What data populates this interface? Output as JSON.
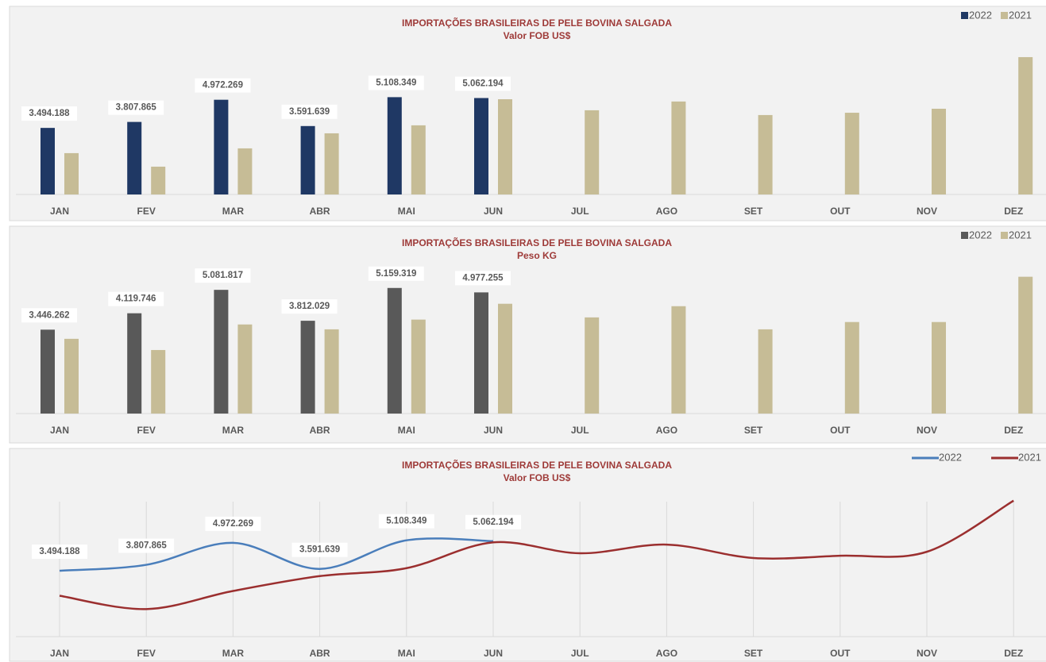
{
  "chart_data": [
    {
      "type": "bar",
      "title": "IMPORTAÇÕES BRASILEIRAS DE PELE BOVINA SALGADA",
      "subtitle": "Valor FOB US$",
      "categories": [
        "JAN",
        "FEV",
        "MAR",
        "ABR",
        "MAI",
        "JUN",
        "JUL",
        "AGO",
        "SET",
        "OUT",
        "NOV",
        "DEZ"
      ],
      "ylim": [
        0,
        8000000
      ],
      "legend": "top-right",
      "grid": false,
      "series": [
        {
          "name": "2022",
          "color": "#1f3864",
          "values": [
            3494188,
            3807865,
            4972269,
            3591639,
            5108349,
            5062194,
            null,
            null,
            null,
            null,
            null,
            null
          ],
          "value_labels": [
            "3.494.188",
            "3.807.865",
            "4.972.269",
            "3.591.639",
            "5.108.349",
            "5.062.194",
            null,
            null,
            null,
            null,
            null,
            null
          ]
        },
        {
          "name": "2021",
          "color": "#c6bc96",
          "values": [
            2170000,
            1460000,
            2420000,
            3210000,
            3630000,
            5000000,
            4420000,
            4880000,
            4170000,
            4290000,
            4500000,
            7210000
          ]
        }
      ]
    },
    {
      "type": "bar",
      "title": "IMPORTAÇÕES BRASILEIRAS DE PELE BOVINA SALGADA",
      "subtitle": "Peso KG",
      "categories": [
        "JAN",
        "FEV",
        "MAR",
        "ABR",
        "MAI",
        "JUN",
        "JUL",
        "AGO",
        "SET",
        "OUT",
        "NOV",
        "DEZ"
      ],
      "ylim": [
        0,
        6000000
      ],
      "legend": "top-right",
      "grid": false,
      "series": [
        {
          "name": "2022",
          "color": "#595959",
          "values": [
            3446262,
            4119746,
            5081817,
            3812029,
            5159319,
            4977255,
            null,
            null,
            null,
            null,
            null,
            null
          ],
          "value_labels": [
            "3.446.262",
            "4.119.746",
            "5.081.817",
            "3.812.029",
            "5.159.319",
            "4.977.255",
            null,
            null,
            null,
            null,
            null,
            null
          ]
        },
        {
          "name": "2021",
          "color": "#c6bc96",
          "values": [
            3070000,
            2610000,
            3660000,
            3460000,
            3860000,
            4510000,
            3950000,
            4410000,
            3460000,
            3760000,
            3760000,
            5620000
          ]
        }
      ]
    },
    {
      "type": "line",
      "title": "IMPORTAÇÕES BRASILEIRAS DE PELE BOVINA SALGADA",
      "subtitle": "Valor FOB US$",
      "categories": [
        "JAN",
        "FEV",
        "MAR",
        "ABR",
        "MAI",
        "JUN",
        "JUL",
        "AGO",
        "SET",
        "OUT",
        "NOV",
        "DEZ"
      ],
      "ylim": [
        0,
        8000000
      ],
      "legend": "top-right",
      "grid": true,
      "series": [
        {
          "name": "2022",
          "color": "#4a7ebb",
          "values": [
            3494188,
            3807865,
            4972269,
            3591639,
            5108349,
            5062194,
            null,
            null,
            null,
            null,
            null,
            null
          ],
          "value_labels": [
            "3.494.188",
            "3.807.865",
            "4.972.269",
            "3.591.639",
            "5.108.349",
            "5.062.194",
            null,
            null,
            null,
            null,
            null,
            null
          ]
        },
        {
          "name": "2021",
          "color": "#9b2f2f",
          "values": [
            2170000,
            1460000,
            2420000,
            3210000,
            3630000,
            5000000,
            4420000,
            4880000,
            4170000,
            4290000,
            4500000,
            7210000
          ]
        }
      ]
    }
  ]
}
